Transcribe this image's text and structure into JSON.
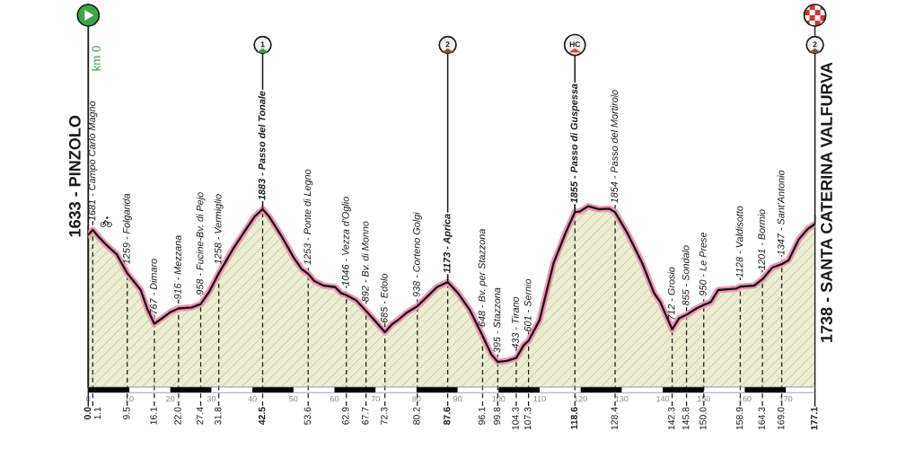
{
  "chart_data": {
    "type": "area",
    "color": "#eceed3",
    "x": [
      0.0,
      1.1,
      2.6,
      4.4,
      6.9,
      9.5,
      12.8,
      14.5,
      16.1,
      17.9,
      20.0,
      22.0,
      25.2,
      27.4,
      29.5,
      31.8,
      35.4,
      38.3,
      40.5,
      42.5,
      44.1,
      47.1,
      50.0,
      52.0,
      53.6,
      55.1,
      57.3,
      60.2,
      61.6,
      62.9,
      65.3,
      67.7,
      70.0,
      72.3,
      74.0,
      75.5,
      77.7,
      80.2,
      81.8,
      83.5,
      85.0,
      87.6,
      90.1,
      93.0,
      96.1,
      98.2,
      99.8,
      102.0,
      104.3,
      106.1,
      107.3,
      110.0,
      113.4,
      116.3,
      118.6,
      119.8,
      121.8,
      124.4,
      127.0,
      128.4,
      131.4,
      135.0,
      137.9,
      139.4,
      142.3,
      144.0,
      145.8,
      148.4,
      150.0,
      151.7,
      153.5,
      157.9,
      158.9,
      162.3,
      164.3,
      166.7,
      169.0,
      170.7,
      173.2,
      175.4,
      177.1
    ],
    "values": [
      1633,
      1681,
      1610,
      1535,
      1445,
      1259,
      1095,
      900,
      767,
      818,
      880,
      916,
      925,
      958,
      1080,
      1258,
      1503,
      1678,
      1810,
      1883,
      1810,
      1620,
      1416,
      1300,
      1253,
      1183,
      1139,
      1124,
      1066,
      1046,
      995,
      892,
      790,
      685,
      760,
      803,
      877,
      938,
      1000,
      1066,
      1124,
      1173,
      1066,
      900,
      648,
      470,
      395,
      405,
      433,
      555,
      601,
      803,
      1358,
      1649,
      1855,
      1860,
      1912,
      1883,
      1888,
      1854,
      1649,
      1358,
      1066,
      978,
      712,
      820,
      855,
      920,
      950,
      978,
      1095,
      1109,
      1128,
      1139,
      1201,
      1314,
      1347,
      1387,
      1591,
      1693,
      1738
    ],
    "value_labels": [
      "1633 - PINZOLO",
      "1681 - Campo Carlo Magno",
      null,
      null,
      null,
      "1259 - Folgarida",
      null,
      null,
      "767 - Dimaro",
      null,
      null,
      "916 - Mezzana",
      null,
      "958 - Fucine-Bv. di Pejo",
      null,
      "1258 - Vermiglio",
      null,
      null,
      null,
      "1883 - Passo del Tonale",
      null,
      null,
      null,
      null,
      "1253 - Ponte di Legno",
      null,
      null,
      null,
      null,
      "1046 - Vezza d'Oglio",
      null,
      "892 - Bv. di Monno",
      null,
      "685 - Edolo",
      null,
      null,
      null,
      "938 - Corteno Golgi",
      null,
      null,
      null,
      "1173 - Aprica",
      null,
      null,
      "648 - Bv. per Stazzona",
      null,
      "395 - Stazzona",
      null,
      "433 - Tirano",
      null,
      "601 - Sernio",
      null,
      null,
      null,
      "1855 - Passo di Guspessa",
      null,
      null,
      null,
      null,
      "1854 - Passo del Mortirolo",
      null,
      null,
      null,
      null,
      "712 - Grosio",
      null,
      "855 - Sondalo",
      null,
      "950 - Le Prese",
      null,
      null,
      null,
      "1128 - Valdisotto",
      null,
      "1201 - Bormio",
      null,
      "1347 - Sant'Antonio",
      null,
      null,
      null,
      "1738 - SANTA CATERINA VALFURVA"
    ],
    "xlim": [
      0,
      177.1
    ],
    "ylim": [
      150,
      3880
    ],
    "xticks": [
      0,
      10,
      20,
      30,
      40,
      50,
      60,
      70,
      80,
      90,
      100,
      110,
      120,
      130,
      140,
      150,
      160,
      170
    ],
    "tick_labels": "x",
    "grid": false,
    "ref_lines": [
      {
        "axis": "x",
        "value": 0.0,
        "label": "0.0",
        "line_style": "solid"
      },
      {
        "axis": "x",
        "value": 1.1,
        "label": "1.1",
        "line_style": "dashed"
      },
      {
        "axis": "x",
        "value": 9.5,
        "label": "9.5",
        "line_style": "dashed"
      },
      {
        "axis": "x",
        "value": 16.1,
        "label": "16.1",
        "line_style": "dashed"
      },
      {
        "axis": "x",
        "value": 22.0,
        "label": "22.0",
        "line_style": "dashed"
      },
      {
        "axis": "x",
        "value": 27.4,
        "label": "27.4",
        "line_style": "dashed"
      },
      {
        "axis": "x",
        "value": 31.8,
        "label": "31.8",
        "line_style": "dashed"
      },
      {
        "axis": "x",
        "value": 42.5,
        "label": "42.5",
        "line_style": "dashed"
      },
      {
        "axis": "x",
        "value": 53.6,
        "label": "53.6",
        "line_style": "dashed"
      },
      {
        "axis": "x",
        "value": 62.9,
        "label": "62.9",
        "line_style": "dashed"
      },
      {
        "axis": "x",
        "value": 67.7,
        "label": "67.7",
        "line_style": "dashed"
      },
      {
        "axis": "x",
        "value": 72.3,
        "label": "72.3",
        "line_style": "dashed"
      },
      {
        "axis": "x",
        "value": 80.2,
        "label": "80.2",
        "line_style": "dashed"
      },
      {
        "axis": "x",
        "value": 87.6,
        "label": "87.6",
        "line_style": "dashed"
      },
      {
        "axis": "x",
        "value": 96.1,
        "label": "96.1",
        "line_style": "dashed"
      },
      {
        "axis": "x",
        "value": 99.8,
        "label": "99.8",
        "line_style": "dashed"
      },
      {
        "axis": "x",
        "value": 104.3,
        "label": "104.3",
        "line_style": "dashed"
      },
      {
        "axis": "x",
        "value": 107.3,
        "label": "107.3",
        "line_style": "dashed"
      },
      {
        "axis": "x",
        "value": 118.6,
        "label": "118.6",
        "line_style": "dashed"
      },
      {
        "axis": "x",
        "value": 128.4,
        "label": "128.4",
        "line_style": "dashed"
      },
      {
        "axis": "x",
        "value": 142.3,
        "label": "142.3",
        "line_style": "dashed"
      },
      {
        "axis": "x",
        "value": 145.8,
        "label": "145.8",
        "line_style": "dashed"
      },
      {
        "axis": "x",
        "value": 150.0,
        "label": "150.0",
        "line_style": "dashed"
      },
      {
        "axis": "x",
        "value": 158.9,
        "label": "158.9",
        "line_style": "dashed"
      },
      {
        "axis": "x",
        "value": 164.3,
        "label": "164.3",
        "line_style": "dashed"
      },
      {
        "axis": "x",
        "value": 169.0,
        "label": "169.0",
        "line_style": "dashed"
      },
      {
        "axis": "x",
        "value": 177.1,
        "label": "177.1",
        "line_style": "solid"
      }
    ],
    "annotations": [
      "km 0",
      {
        "text": "1",
        "x": 42.5,
        "y": 1883
      },
      {
        "text": "2",
        "x": 87.6,
        "y": 1173
      },
      {
        "text": "HC",
        "x": 118.6,
        "y": 1855
      },
      {
        "text": "2",
        "x": 177.1,
        "y": 1738
      }
    ]
  }
}
